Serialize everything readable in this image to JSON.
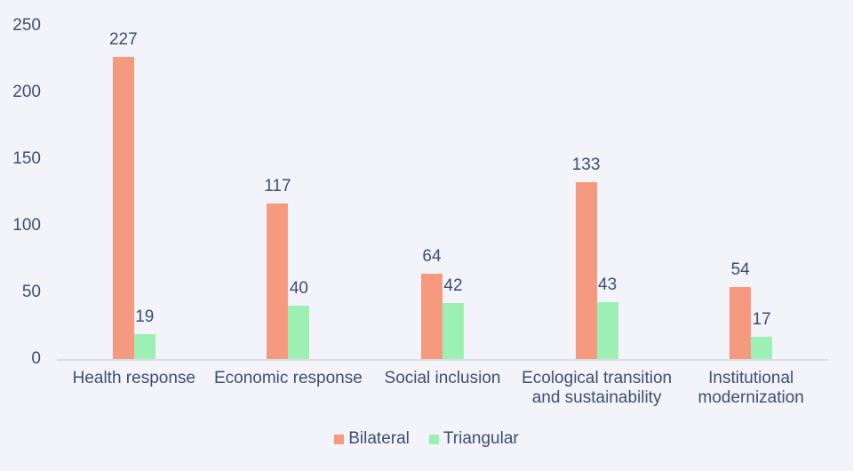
{
  "chart_data": {
    "type": "bar",
    "categories": [
      "Health response",
      "Economic response",
      "Social inclusion",
      "Ecological transition and sustainability",
      "Institutional modernization"
    ],
    "series": [
      {
        "name": "Bilateral",
        "color": "#f5997f",
        "values": [
          227,
          117,
          64,
          133,
          54
        ]
      },
      {
        "name": "Triangular",
        "color": "#9df0b3",
        "values": [
          19,
          40,
          42,
          43,
          17
        ]
      }
    ],
    "title": "",
    "xlabel": "",
    "ylabel": "",
    "ylim": [
      0,
      250
    ],
    "yticks": [
      0,
      50,
      100,
      150,
      200,
      250
    ],
    "grid": false,
    "legend_position": "bottom",
    "show_value_labels": true
  },
  "colors": {
    "background": "#f2f4f9",
    "text": "#3f4d73",
    "axis_line": "#dcdde1"
  }
}
